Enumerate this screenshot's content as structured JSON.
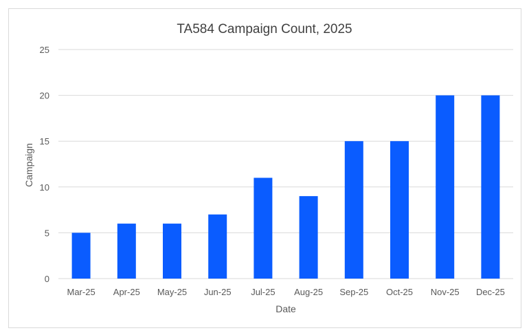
{
  "chart_data": {
    "type": "bar",
    "title": "TA584 Campaign Count, 2025",
    "xlabel": "Date",
    "ylabel": "Campaign",
    "categories": [
      "Mar-25",
      "Apr-25",
      "May-25",
      "Jun-25",
      "Jul-25",
      "Aug-25",
      "Sep-25",
      "Oct-25",
      "Nov-25",
      "Dec-25"
    ],
    "values": [
      5,
      6,
      6,
      7,
      11,
      9,
      15,
      15,
      20,
      20
    ],
    "ylim": [
      0,
      25
    ],
    "yticks": [
      0,
      5,
      10,
      15,
      20,
      25
    ],
    "grid": true,
    "legend": "none",
    "colors": {
      "bar": "#0A5CFF",
      "grid": "#d9d9d9",
      "text": "#595959"
    }
  }
}
